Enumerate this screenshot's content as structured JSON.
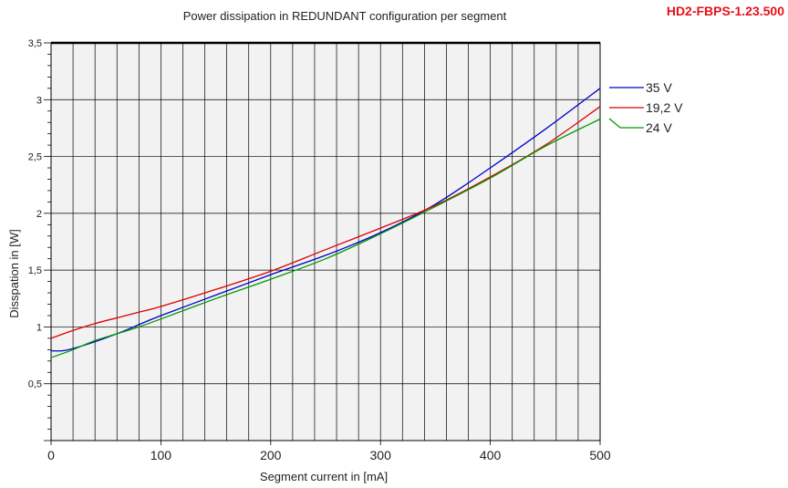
{
  "header": {
    "product_code": "HD2-FBPS-1.23.500",
    "product_code_color": "#e8101a"
  },
  "chart_data": {
    "type": "line",
    "title": "Power dissipation in REDUNDANT configuration per segment",
    "xlabel": "Segment current in [mA]",
    "ylabel": "Disspation in [W]",
    "xlim": [
      0,
      500
    ],
    "ylim": [
      0,
      3.5
    ],
    "x_ticks": [
      "0",
      "100",
      "200",
      "300",
      "400",
      "500"
    ],
    "y_ticks": [
      "0,5",
      "1",
      "1,5",
      "2",
      "2,5",
      "3",
      "3,5"
    ],
    "grid": true,
    "background": "#f2f2f2",
    "legend_position": "right",
    "series": [
      {
        "name": "35 V",
        "color": "#0000cc",
        "x": [
          0,
          10,
          20,
          40,
          60,
          80,
          100,
          150,
          200,
          250,
          300,
          350,
          400,
          450,
          500
        ],
        "y": [
          0.79,
          0.79,
          0.81,
          0.87,
          0.94,
          1.02,
          1.1,
          1.28,
          1.46,
          1.63,
          1.83,
          2.08,
          2.4,
          2.74,
          3.1
        ]
      },
      {
        "name": "19,2 V",
        "color": "#dd0000",
        "x": [
          0,
          20,
          40,
          60,
          80,
          100,
          150,
          200,
          250,
          300,
          350,
          400,
          450,
          500
        ],
        "y": [
          0.9,
          0.97,
          1.03,
          1.08,
          1.13,
          1.18,
          1.33,
          1.49,
          1.68,
          1.87,
          2.07,
          2.32,
          2.6,
          2.94
        ]
      },
      {
        "name": "24 V",
        "color": "#009900",
        "x": [
          0,
          20,
          40,
          60,
          80,
          100,
          150,
          200,
          250,
          300,
          350,
          400,
          450,
          500
        ],
        "y": [
          0.73,
          0.8,
          0.88,
          0.94,
          1.0,
          1.07,
          1.25,
          1.42,
          1.6,
          1.82,
          2.06,
          2.31,
          2.59,
          2.83
        ]
      }
    ]
  }
}
